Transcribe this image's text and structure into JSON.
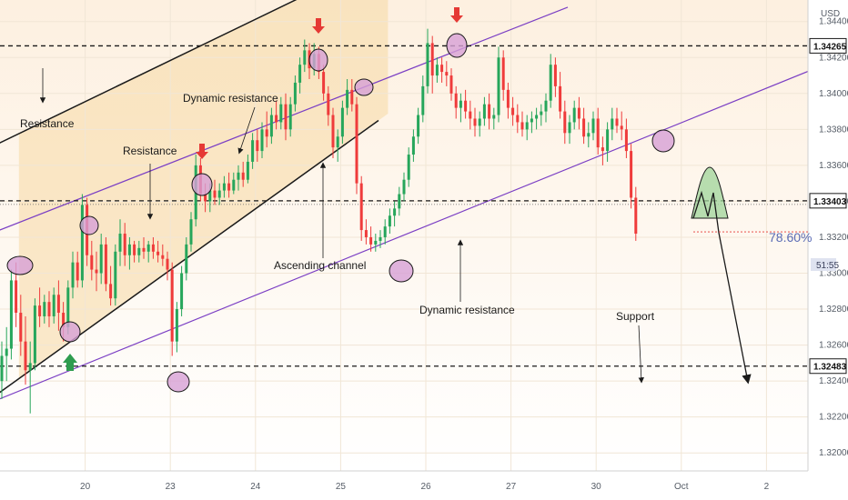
{
  "chart_data": {
    "type": "candlestick",
    "currency": "USD",
    "y_axis": {
      "ylim": [
        1.319,
        1.3452
      ],
      "ticks": [
        "1.32000",
        "1.32200",
        "1.32400",
        "1.32600",
        "1.32800",
        "1.33000",
        "1.33200",
        "1.33400",
        "1.33600",
        "1.33800",
        "1.34000",
        "1.34200",
        "1.34400"
      ]
    },
    "x_axis": {
      "ticks": [
        {
          "label": "20",
          "x": 18
        },
        {
          "label": "23",
          "x": 36
        },
        {
          "label": "24",
          "x": 54
        },
        {
          "label": "25",
          "x": 72
        },
        {
          "label": "26",
          "x": 90
        },
        {
          "label": "27",
          "x": 108
        },
        {
          "label": "30",
          "x": 126
        },
        {
          "label": "Oct",
          "x": 144
        },
        {
          "label": "2",
          "x": 162
        }
      ]
    },
    "levels": [
      {
        "name": "resistance",
        "value": "1.34265",
        "style": "dashed"
      },
      {
        "name": "mid-level",
        "value": "1.33403",
        "style": "dashed"
      },
      {
        "name": "support",
        "value": "1.32483",
        "style": "dashed"
      }
    ],
    "current_price": {
      "value": 1.3323,
      "countdown": "51:55"
    },
    "fib_label": "78.60%",
    "annotations": [
      {
        "text": "Resistance",
        "x": 6,
        "y": 1.3398
      },
      {
        "text": "Resistance",
        "x": 29,
        "y": 1.338
      },
      {
        "text": "Dynamic resistance",
        "x": 49,
        "y": 1.3411
      },
      {
        "text": "Ascending channel",
        "x": 68,
        "y": 1.3317
      },
      {
        "text": "Dynamic resistance",
        "x": 98,
        "y": 1.3291
      },
      {
        "text": "Support",
        "x": 140,
        "y": 1.3282
      }
    ],
    "trend_lines": [
      {
        "name": "channel-upper",
        "color": "#1a1a1a",
        "from": [
          -2,
          1.337
        ],
        "to": [
          108,
          1.351
        ]
      },
      {
        "name": "channel-lower",
        "color": "#1a1a1a",
        "from": [
          -2,
          1.323
        ],
        "to": [
          80,
          1.3385
        ]
      },
      {
        "name": "dynamic-resistance-upper",
        "color": "#7b3fc4",
        "from": [
          -2,
          1.3322
        ],
        "to": [
          120,
          1.3448
        ]
      },
      {
        "name": "dynamic-resistance-lower",
        "color": "#7b3fc4",
        "from": [
          -2,
          1.3228
        ],
        "to": [
          178,
          1.342
        ]
      }
    ],
    "candles": [
      [
        1.324,
        1.3262,
        1.323,
        1.3254
      ],
      [
        1.3254,
        1.327,
        1.324,
        1.3258
      ],
      [
        1.3258,
        1.3302,
        1.3252,
        1.3296
      ],
      [
        1.3296,
        1.3306,
        1.327,
        1.3278
      ],
      [
        1.3278,
        1.3288,
        1.3254,
        1.3262
      ],
      [
        1.3262,
        1.3276,
        1.3238,
        1.3246
      ],
      [
        1.3246,
        1.3262,
        1.3222,
        1.325
      ],
      [
        1.325,
        1.3286,
        1.3246,
        1.3282
      ],
      [
        1.3282,
        1.3292,
        1.327,
        1.3276
      ],
      [
        1.3276,
        1.3288,
        1.3272,
        1.3284
      ],
      [
        1.3284,
        1.329,
        1.327,
        1.3276
      ],
      [
        1.3276,
        1.3292,
        1.3272,
        1.3288
      ],
      [
        1.3288,
        1.3296,
        1.3268,
        1.3278
      ],
      [
        1.3278,
        1.3284,
        1.3262,
        1.327
      ],
      [
        1.327,
        1.3296,
        1.3266,
        1.3292
      ],
      [
        1.3292,
        1.3312,
        1.3286,
        1.3306
      ],
      [
        1.3306,
        1.3312,
        1.3292,
        1.3296
      ],
      [
        1.3296,
        1.3344,
        1.3292,
        1.3338
      ],
      [
        1.3338,
        1.3342,
        1.3304,
        1.331
      ],
      [
        1.331,
        1.3318,
        1.3296,
        1.3302
      ],
      [
        1.3302,
        1.3312,
        1.329,
        1.33
      ],
      [
        1.33,
        1.3322,
        1.3294,
        1.3316
      ],
      [
        1.3316,
        1.332,
        1.329,
        1.3294
      ],
      [
        1.3294,
        1.3304,
        1.3282,
        1.3286
      ],
      [
        1.3286,
        1.3316,
        1.3282,
        1.3312
      ],
      [
        1.3312,
        1.333,
        1.3304,
        1.3322
      ],
      [
        1.3322,
        1.3328,
        1.3304,
        1.331
      ],
      [
        1.331,
        1.332,
        1.3302,
        1.3316
      ],
      [
        1.3316,
        1.3318,
        1.3306,
        1.331
      ],
      [
        1.331,
        1.3318,
        1.3306,
        1.3314
      ],
      [
        1.3314,
        1.332,
        1.3308,
        1.3312
      ],
      [
        1.3312,
        1.3318,
        1.3306,
        1.3316
      ],
      [
        1.3316,
        1.332,
        1.3308,
        1.3312
      ],
      [
        1.3312,
        1.3318,
        1.3306,
        1.331
      ],
      [
        1.331,
        1.3316,
        1.3304,
        1.3308
      ],
      [
        1.3308,
        1.3312,
        1.3296,
        1.3302
      ],
      [
        1.3302,
        1.3306,
        1.3254,
        1.3262
      ],
      [
        1.3262,
        1.3284,
        1.3256,
        1.328
      ],
      [
        1.328,
        1.3304,
        1.3276,
        1.33
      ],
      [
        1.33,
        1.332,
        1.3296,
        1.3316
      ],
      [
        1.3316,
        1.3334,
        1.3312,
        1.333
      ],
      [
        1.333,
        1.3366,
        1.3326,
        1.336
      ],
      [
        1.336,
        1.3364,
        1.334,
        1.3344
      ],
      [
        1.3344,
        1.335,
        1.3334,
        1.334
      ],
      [
        1.334,
        1.335,
        1.3334,
        1.3346
      ],
      [
        1.3346,
        1.3352,
        1.3338,
        1.3342
      ],
      [
        1.3342,
        1.335,
        1.3338,
        1.3346
      ],
      [
        1.3346,
        1.3354,
        1.3342,
        1.335
      ],
      [
        1.335,
        1.3356,
        1.3342,
        1.3346
      ],
      [
        1.3346,
        1.3356,
        1.3344,
        1.3352
      ],
      [
        1.3352,
        1.336,
        1.3346,
        1.3356
      ],
      [
        1.3356,
        1.3362,
        1.3348,
        1.3352
      ],
      [
        1.3352,
        1.3366,
        1.335,
        1.3362
      ],
      [
        1.3362,
        1.3378,
        1.3358,
        1.3374
      ],
      [
        1.3374,
        1.338,
        1.3362,
        1.3368
      ],
      [
        1.3368,
        1.3384,
        1.3364,
        1.338
      ],
      [
        1.338,
        1.339,
        1.337,
        1.3376
      ],
      [
        1.3376,
        1.3392,
        1.3372,
        1.3388
      ],
      [
        1.3388,
        1.3396,
        1.338,
        1.3384
      ],
      [
        1.3384,
        1.3398,
        1.338,
        1.3394
      ],
      [
        1.3394,
        1.34,
        1.3374,
        1.338
      ],
      [
        1.338,
        1.3398,
        1.3376,
        1.3394
      ],
      [
        1.3394,
        1.341,
        1.339,
        1.3406
      ],
      [
        1.3406,
        1.342,
        1.34,
        1.3416
      ],
      [
        1.3416,
        1.343,
        1.3412,
        1.3424
      ],
      [
        1.3424,
        1.3428,
        1.3408,
        1.3414
      ],
      [
        1.3414,
        1.3428,
        1.341,
        1.3422
      ],
      [
        1.3422,
        1.3426,
        1.3408,
        1.3412
      ],
      [
        1.3412,
        1.3416,
        1.3396,
        1.34
      ],
      [
        1.34,
        1.3404,
        1.3382,
        1.3388
      ],
      [
        1.3388,
        1.3392,
        1.3364,
        1.337
      ],
      [
        1.337,
        1.338,
        1.3362,
        1.3376
      ],
      [
        1.3376,
        1.3396,
        1.3372,
        1.3392
      ],
      [
        1.3392,
        1.3408,
        1.3388,
        1.3402
      ],
      [
        1.3402,
        1.3408,
        1.339,
        1.3394
      ],
      [
        1.3394,
        1.3398,
        1.3344,
        1.335
      ],
      [
        1.335,
        1.3354,
        1.3318,
        1.3324
      ],
      [
        1.3324,
        1.333,
        1.3316,
        1.332
      ],
      [
        1.332,
        1.3326,
        1.3312,
        1.3316
      ],
      [
        1.3316,
        1.3322,
        1.3312,
        1.3318
      ],
      [
        1.3318,
        1.3324,
        1.3314,
        1.332
      ],
      [
        1.332,
        1.333,
        1.3316,
        1.3326
      ],
      [
        1.3326,
        1.3336,
        1.3322,
        1.3332
      ],
      [
        1.3332,
        1.334,
        1.3326,
        1.3336
      ],
      [
        1.3336,
        1.3348,
        1.3332,
        1.3344
      ],
      [
        1.3344,
        1.3356,
        1.334,
        1.3352
      ],
      [
        1.3352,
        1.337,
        1.3348,
        1.3366
      ],
      [
        1.3366,
        1.338,
        1.3362,
        1.3376
      ],
      [
        1.3376,
        1.3392,
        1.3372,
        1.3388
      ],
      [
        1.3388,
        1.341,
        1.3384,
        1.3404
      ],
      [
        1.3404,
        1.3436,
        1.34,
        1.3428
      ],
      [
        1.3428,
        1.3432,
        1.34,
        1.341
      ],
      [
        1.341,
        1.342,
        1.3406,
        1.3416
      ],
      [
        1.3416,
        1.342,
        1.3406,
        1.3412
      ],
      [
        1.3412,
        1.3418,
        1.3404,
        1.341
      ],
      [
        1.341,
        1.3414,
        1.3396,
        1.34
      ],
      [
        1.34,
        1.3404,
        1.3386,
        1.3392
      ],
      [
        1.3392,
        1.34,
        1.3384,
        1.3396
      ],
      [
        1.3396,
        1.3402,
        1.3386,
        1.339
      ],
      [
        1.339,
        1.3396,
        1.338,
        1.3386
      ],
      [
        1.3386,
        1.3392,
        1.3376,
        1.3382
      ],
      [
        1.3382,
        1.339,
        1.3376,
        1.3386
      ],
      [
        1.3386,
        1.3398,
        1.3382,
        1.3394
      ],
      [
        1.3394,
        1.34,
        1.338,
        1.3386
      ],
      [
        1.3386,
        1.3392,
        1.338,
        1.3388
      ],
      [
        1.3388,
        1.3426,
        1.3384,
        1.342
      ],
      [
        1.342,
        1.3424,
        1.3396,
        1.3402
      ],
      [
        1.3402,
        1.3406,
        1.3386,
        1.3392
      ],
      [
        1.3392,
        1.3398,
        1.3382,
        1.3388
      ],
      [
        1.3388,
        1.3394,
        1.3378,
        1.3384
      ],
      [
        1.3384,
        1.339,
        1.3376,
        1.338
      ],
      [
        1.338,
        1.3388,
        1.3374,
        1.3384
      ],
      [
        1.3384,
        1.339,
        1.3378,
        1.3386
      ],
      [
        1.3386,
        1.3392,
        1.338,
        1.3388
      ],
      [
        1.3388,
        1.3394,
        1.3382,
        1.339
      ],
      [
        1.339,
        1.34,
        1.3384,
        1.3396
      ],
      [
        1.3396,
        1.3422,
        1.3392,
        1.3416
      ],
      [
        1.3416,
        1.342,
        1.3398,
        1.3404
      ],
      [
        1.3404,
        1.3412,
        1.3386,
        1.339
      ],
      [
        1.339,
        1.3396,
        1.3372,
        1.3378
      ],
      [
        1.3378,
        1.3388,
        1.3372,
        1.3384
      ],
      [
        1.3384,
        1.3396,
        1.338,
        1.3392
      ],
      [
        1.3392,
        1.3398,
        1.338,
        1.3386
      ],
      [
        1.3386,
        1.3392,
        1.3372,
        1.3376
      ],
      [
        1.3376,
        1.3384,
        1.337,
        1.3378
      ],
      [
        1.3378,
        1.339,
        1.3374,
        1.3386
      ],
      [
        1.3386,
        1.3392,
        1.3366,
        1.337
      ],
      [
        1.337,
        1.3376,
        1.336,
        1.3368
      ],
      [
        1.3368,
        1.3384,
        1.3362,
        1.338
      ],
      [
        1.338,
        1.3392,
        1.3374,
        1.3386
      ],
      [
        1.3386,
        1.3392,
        1.3378,
        1.3382
      ],
      [
        1.3382,
        1.339,
        1.3374,
        1.338
      ],
      [
        1.338,
        1.3386,
        1.3364,
        1.3368
      ],
      [
        1.3368,
        1.3372,
        1.3336,
        1.3342
      ],
      [
        1.3342,
        1.3348,
        1.3318,
        1.3322
      ]
    ]
  },
  "ui": {
    "currency_label": "USD",
    "fib_label": "78.60%",
    "countdown": "51:55",
    "price_tags": [
      "1.34265",
      "1.33403",
      "1.32483"
    ]
  }
}
